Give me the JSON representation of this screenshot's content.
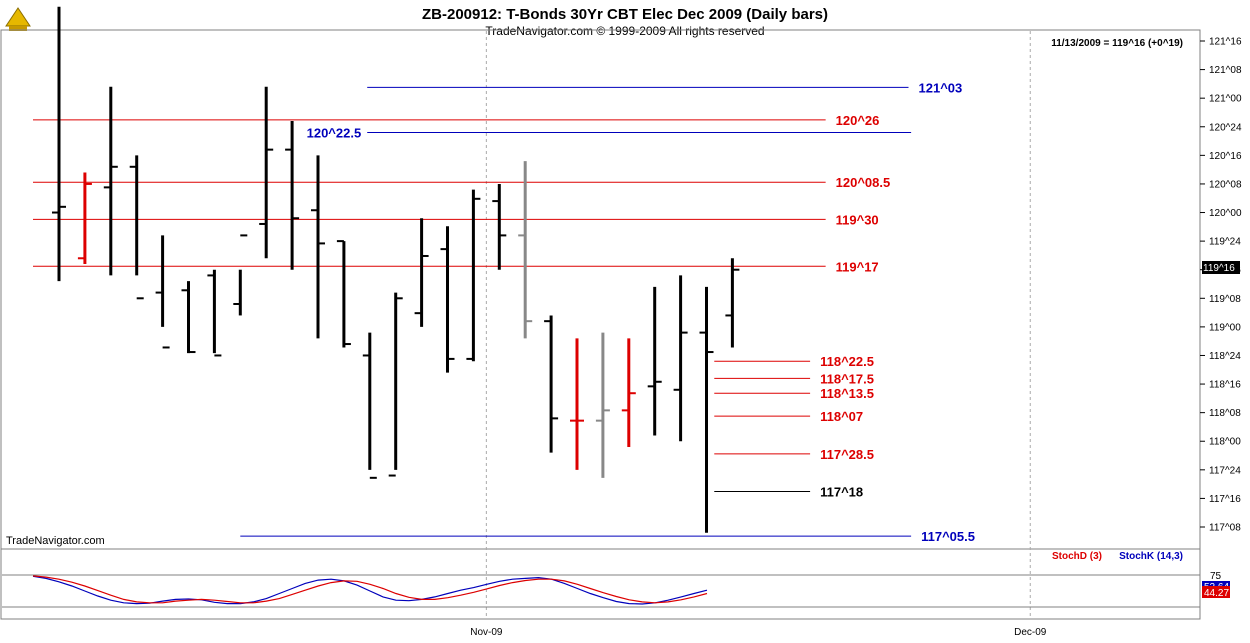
{
  "header": {
    "title": "ZB-200912:  T-Bonds 30Yr CBT Elec Dec 2009  (Daily bars)",
    "subtitle": "TradeNavigator.com © 1999-2009 All rights reserved",
    "last_info": "11/13/2009 = 119^16 (+0^19)",
    "watermark": "TradeNavigator.com"
  },
  "colors": {
    "support": "#dd0000",
    "target": "#0000bb",
    "bar_black": "#000000",
    "bar_red": "#dd0000",
    "bar_gray": "#888888",
    "stoch_d": "#dd0000",
    "stoch_k": "#0000bb"
  },
  "chart_data": {
    "type": "ohlc",
    "units": "price in 32nds (ticks of 1/32)",
    "y_range_ticks": [
      "117^08",
      "121^16"
    ],
    "y_tick_labels": [
      "121^16",
      "121^08",
      "121^00",
      "120^24",
      "120^16",
      "120^08",
      "120^00",
      "119^24",
      "119^16",
      "119^08",
      "119^00",
      "118^24",
      "118^16",
      "118^08",
      "118^00",
      "117^24",
      "117^16",
      "117^08"
    ],
    "x_labels": [
      {
        "label": "Nov-09",
        "bar_index": 16.5
      },
      {
        "label": "Dec-09",
        "bar_index": 37.5
      }
    ],
    "bars": [
      {
        "o": 120.0,
        "h": 121.8,
        "l": 119.4,
        "c": 120.05,
        "color": "black"
      },
      {
        "o": 119.6,
        "h": 120.35,
        "l": 119.55,
        "c": 120.25,
        "color": "red"
      },
      {
        "o": 120.22,
        "h": 121.1,
        "l": 119.45,
        "c": 120.4,
        "color": "black"
      },
      {
        "o": 120.4,
        "h": 120.5,
        "l": 119.45,
        "c": 119.25,
        "color": "black"
      },
      {
        "o": 119.3,
        "h": 119.8,
        "l": 119.0,
        "c": 118.82,
        "color": "black"
      },
      {
        "o": 119.32,
        "h": 119.4,
        "l": 118.77,
        "c": 118.78,
        "color": "black"
      },
      {
        "o": 119.45,
        "h": 119.5,
        "l": 118.77,
        "c": 118.75,
        "color": "black"
      },
      {
        "o": 119.2,
        "h": 119.5,
        "l": 119.1,
        "c": 119.8,
        "color": "black"
      },
      {
        "o": 119.9,
        "h": 121.1,
        "l": 119.6,
        "c": 120.55,
        "color": "black"
      },
      {
        "o": 120.55,
        "h": 120.8,
        "l": 119.5,
        "c": 119.95,
        "color": "black"
      },
      {
        "o": 120.02,
        "h": 120.5,
        "l": 118.9,
        "c": 119.73,
        "color": "black"
      },
      {
        "o": 119.75,
        "h": 119.75,
        "l": 118.82,
        "c": 118.85,
        "color": "black"
      },
      {
        "o": 118.75,
        "h": 118.95,
        "l": 117.75,
        "c": 117.68,
        "color": "black"
      },
      {
        "o": 117.7,
        "h": 119.3,
        "l": 117.75,
        "c": 119.25,
        "color": "black"
      },
      {
        "o": 119.12,
        "h": 119.95,
        "l": 119.0,
        "c": 119.62,
        "color": "black"
      },
      {
        "o": 119.68,
        "h": 119.88,
        "l": 118.6,
        "c": 118.72,
        "color": "black"
      },
      {
        "o": 118.72,
        "h": 120.2,
        "l": 118.7,
        "c": 120.12,
        "color": "black"
      },
      {
        "o": 120.1,
        "h": 120.25,
        "l": 119.5,
        "c": 119.8,
        "color": "black"
      },
      {
        "o": 119.8,
        "h": 120.45,
        "l": 118.9,
        "c": 119.05,
        "color": "gray"
      },
      {
        "o": 119.05,
        "h": 119.1,
        "l": 117.9,
        "c": 118.2,
        "color": "black"
      },
      {
        "o": 118.18,
        "h": 118.9,
        "l": 117.75,
        "c": 118.18,
        "color": "red"
      },
      {
        "o": 118.18,
        "h": 118.95,
        "l": 117.68,
        "c": 118.27,
        "color": "gray"
      },
      {
        "o": 118.27,
        "h": 118.9,
        "l": 117.95,
        "c": 118.42,
        "color": "red"
      },
      {
        "o": 118.48,
        "h": 119.35,
        "l": 118.05,
        "c": 118.52,
        "color": "black"
      },
      {
        "o": 118.45,
        "h": 119.45,
        "l": 118.0,
        "c": 118.95,
        "color": "black"
      },
      {
        "o": 118.95,
        "h": 119.35,
        "l": 117.2,
        "c": 118.78,
        "color": "black"
      },
      {
        "o": 119.1,
        "h": 119.6,
        "l": 118.82,
        "c": 119.5,
        "color": "black"
      }
    ],
    "levels": [
      {
        "label": "121^03",
        "price": 121.095,
        "color": "target",
        "from_bar": 11.9,
        "to_bar": 32.8,
        "label_side": "right"
      },
      {
        "label": "120^26",
        "price": 120.81,
        "color": "support",
        "from_bar": 0,
        "to_bar": 29.6,
        "label_side": "right"
      },
      {
        "label": "120^22.5",
        "price": 120.7,
        "color": "target",
        "from_bar": 11.9,
        "to_bar": 32.9,
        "label_side": "left"
      },
      {
        "label": "120^08.5",
        "price": 120.265,
        "color": "support",
        "from_bar": 0,
        "to_bar": 29.6,
        "label_side": "right"
      },
      {
        "label": "119^30",
        "price": 119.94,
        "color": "support",
        "from_bar": 0,
        "to_bar": 29.6,
        "label_side": "right"
      },
      {
        "label": "119^17",
        "price": 119.53,
        "color": "support",
        "from_bar": 0,
        "to_bar": 29.6,
        "label_side": "right"
      },
      {
        "label": "118^22.5",
        "price": 118.7,
        "color": "support",
        "from_bar": 25.3,
        "to_bar": 29.0,
        "label_side": "right"
      },
      {
        "label": "118^17.5",
        "price": 118.55,
        "color": "support",
        "from_bar": 25.3,
        "to_bar": 29.0,
        "label_side": "right"
      },
      {
        "label": "118^13.5",
        "price": 118.42,
        "color": "support",
        "from_bar": 25.3,
        "to_bar": 29.0,
        "label_side": "right"
      },
      {
        "label": "118^07",
        "price": 118.22,
        "color": "support",
        "from_bar": 25.3,
        "to_bar": 29.0,
        "label_side": "right"
      },
      {
        "label": "117^28.5",
        "price": 117.89,
        "color": "support",
        "from_bar": 25.3,
        "to_bar": 29.0,
        "label_side": "right"
      },
      {
        "label": "117^18",
        "price": 117.56,
        "color": "black",
        "from_bar": 25.3,
        "to_bar": 29.0,
        "label_side": "right"
      },
      {
        "label": "117^05.5",
        "price": 117.17,
        "color": "target",
        "from_bar": 7.0,
        "to_bar": 32.9,
        "label_side": "right"
      }
    ],
    "last_price_tag": "119^16",
    "stochastic": {
      "d_label": "StochD (3)",
      "k_label": "StochK (14,3)",
      "level_label": "75",
      "k_value_label": "52.64",
      "d_value_label": "44.27",
      "k": [
        85,
        80,
        72,
        62,
        50,
        38,
        28,
        22,
        20,
        21,
        26,
        30,
        31,
        29,
        23,
        20,
        20,
        24,
        32,
        44,
        56,
        68,
        76,
        78,
        74,
        64,
        50,
        36,
        28,
        27,
        30,
        36,
        44,
        52,
        58,
        66,
        73,
        78,
        80,
        82,
        78,
        68,
        56,
        44,
        34,
        25,
        20,
        19,
        22,
        28,
        36,
        44,
        52
      ],
      "d": [
        86,
        83,
        78,
        71,
        62,
        51,
        40,
        30,
        24,
        22,
        22,
        26,
        28,
        30,
        28,
        25,
        22,
        22,
        26,
        32,
        42,
        52,
        62,
        70,
        74,
        73,
        66,
        56,
        44,
        35,
        30,
        30,
        34,
        40,
        47,
        55,
        63,
        70,
        75,
        78,
        78,
        74,
        66,
        56,
        46,
        37,
        29,
        24,
        22,
        24,
        29,
        36,
        44
      ]
    }
  }
}
